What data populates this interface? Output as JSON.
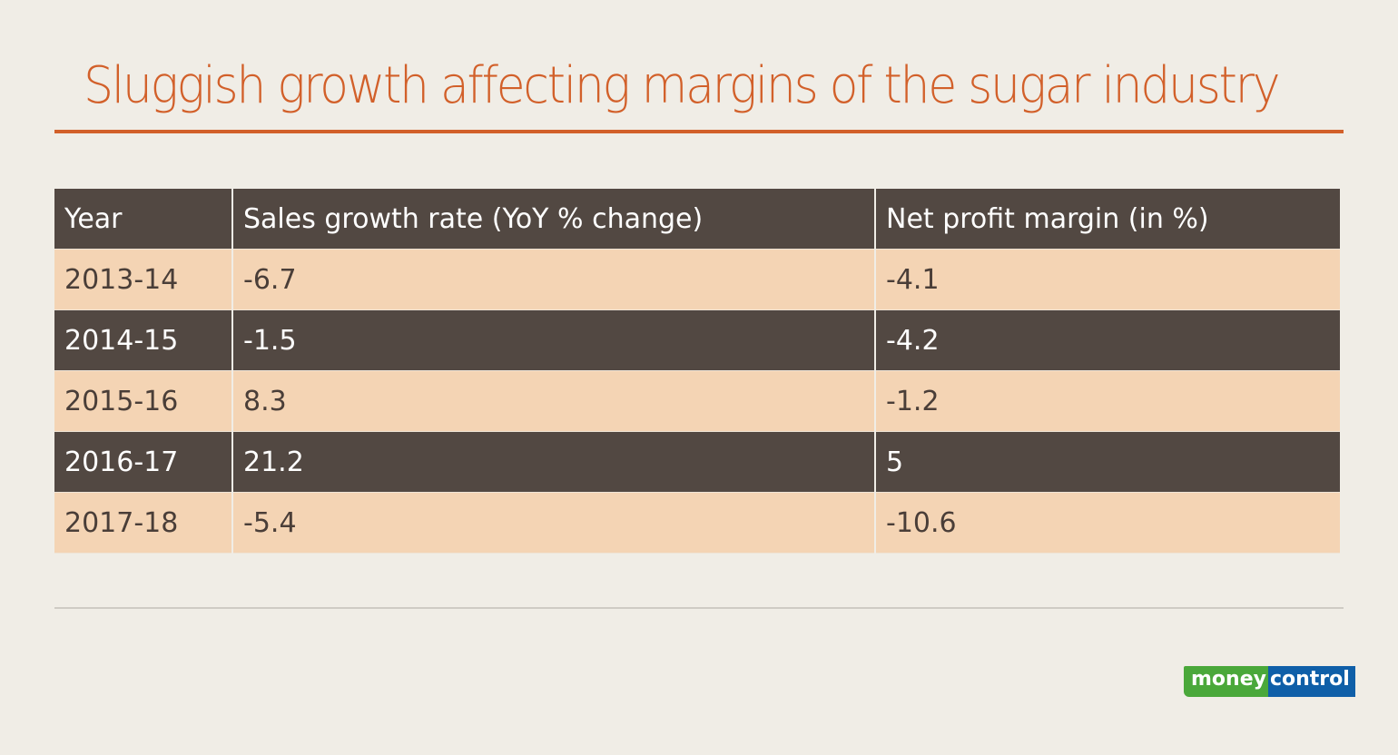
{
  "title": "Sluggish growth affecting margins of the sugar industry",
  "table": {
    "headers": [
      "Year",
      "Sales growth rate (YoY % change)",
      "Net profit margin (in %)"
    ],
    "rows": [
      [
        "2013-14",
        "-6.7",
        "-4.1"
      ],
      [
        "2014-15",
        "-1.5",
        "-4.2"
      ],
      [
        "2015-16",
        "8.3",
        "-1.2"
      ],
      [
        "2016-17",
        "21.2",
        "5"
      ],
      [
        "2017-18",
        "-5.4",
        "-10.6"
      ]
    ]
  },
  "logo": {
    "part1": "money",
    "part2": "control"
  },
  "colors": {
    "accent": "#d2602a",
    "dark_row": "#524842",
    "light_row": "#f4d4b4",
    "background": "#f0ede6"
  },
  "chart_data": {
    "type": "table",
    "title": "Sluggish growth affecting margins of the sugar industry",
    "columns": [
      "Year",
      "Sales growth rate (YoY % change)",
      "Net profit margin (in %)"
    ],
    "categories": [
      "2013-14",
      "2014-15",
      "2015-16",
      "2016-17",
      "2017-18"
    ],
    "series": [
      {
        "name": "Sales growth rate (YoY % change)",
        "values": [
          -6.7,
          -1.5,
          8.3,
          21.2,
          -5.4
        ]
      },
      {
        "name": "Net profit margin (in %)",
        "values": [
          -4.1,
          -4.2,
          -1.2,
          5,
          -10.6
        ]
      }
    ]
  }
}
